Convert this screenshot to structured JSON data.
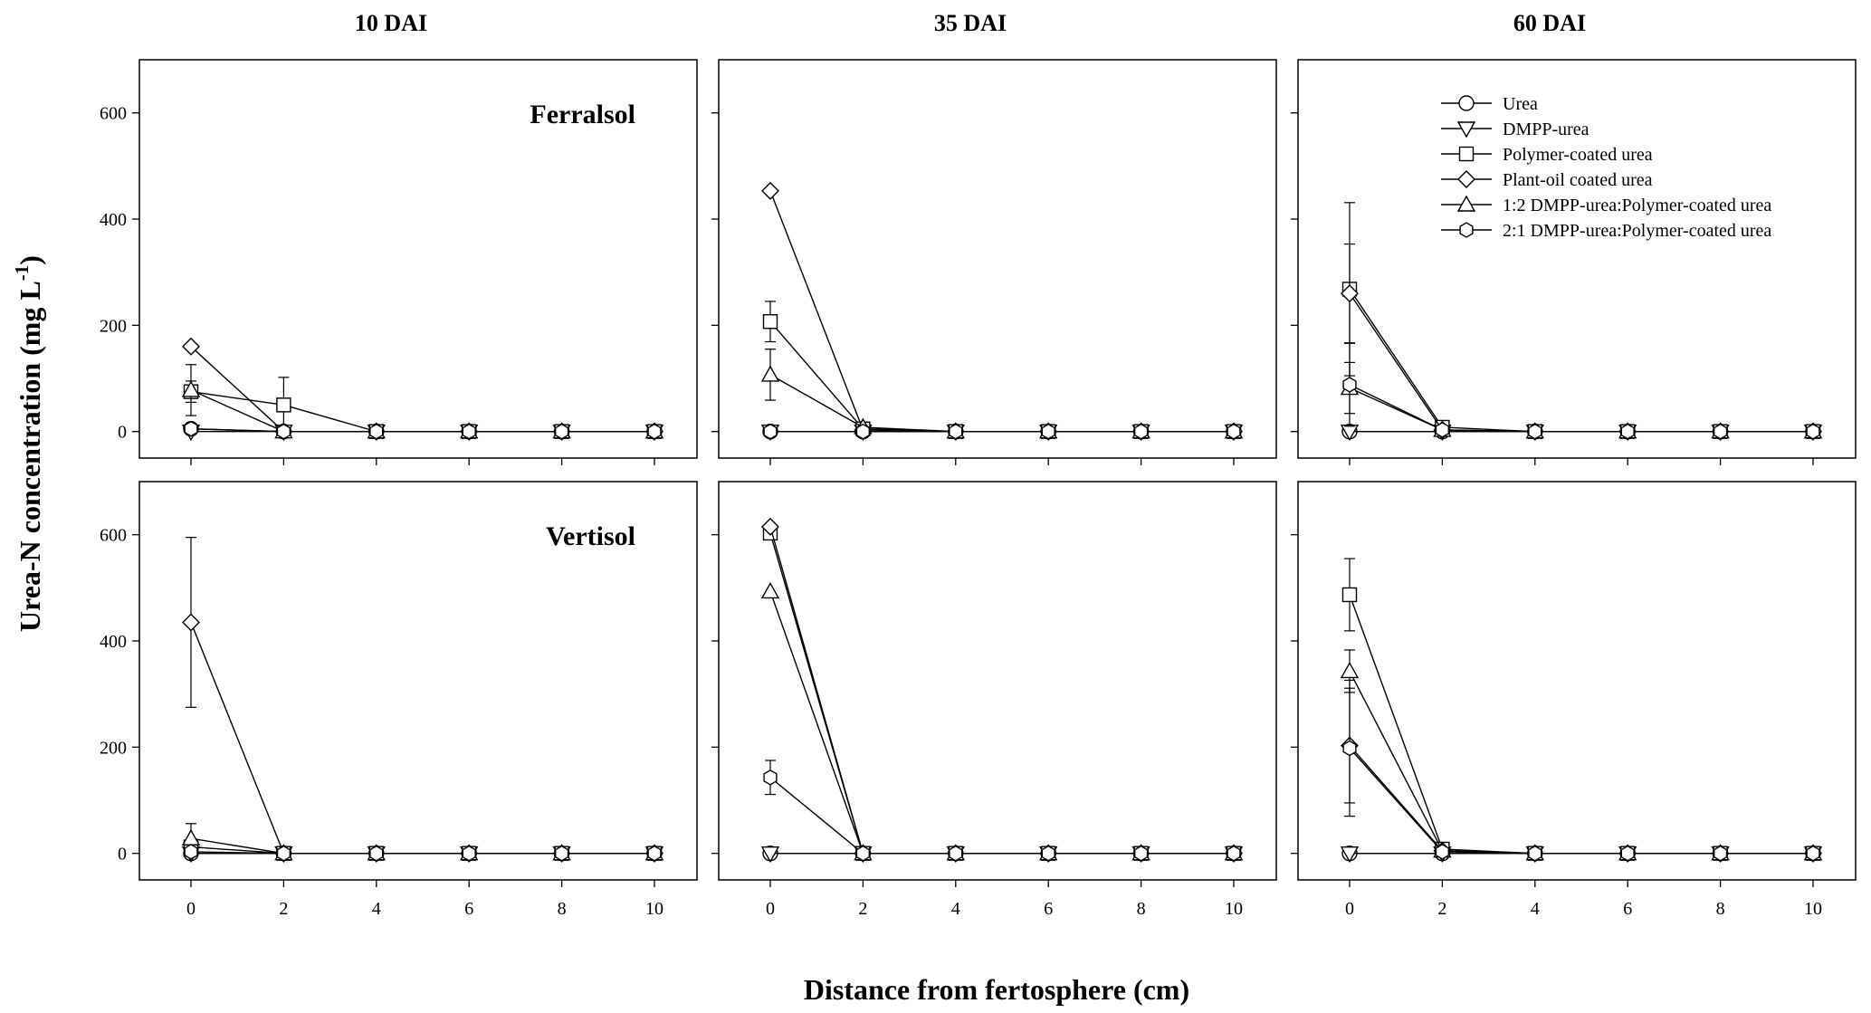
{
  "figure": {
    "ylabel_main": "Urea-N concentration (mg L",
    "ylabel_sup": "-1",
    "ylabel_close": ")",
    "xlabel": "Distance from fertosphere (cm)"
  },
  "chart_data": {
    "type": "line",
    "x": [
      0,
      2,
      4,
      6,
      8,
      10
    ],
    "ylim": [
      -50,
      700
    ],
    "yticks": [
      0,
      200,
      400,
      600
    ],
    "xticks": [
      0,
      2,
      4,
      6,
      8,
      10
    ],
    "grid": false,
    "legend_position": "top-right of 60 DAI Ferralsol panel",
    "columns": [
      "10 DAI",
      "35 DAI",
      "60 DAI"
    ],
    "rows": [
      "Ferralsol",
      "Vertisol"
    ],
    "series_names": [
      "Urea",
      "DMPP-urea",
      "Polymer-coated urea",
      "Plant-oil coated urea",
      "1:2 DMPP-urea:Polymer-coated urea",
      "2:1 DMPP-urea:Polymer-coated urea"
    ],
    "series_markers": [
      "circle",
      "triangle-down",
      "square",
      "diamond",
      "triangle-up",
      "hexagon"
    ],
    "panels": [
      {
        "row": "Ferralsol",
        "column": "10 DAI",
        "label": "Ferralsol",
        "series": [
          {
            "name": "Urea",
            "values": [
              5,
              0,
              0,
              0,
              0,
              0
            ],
            "err": [
              3,
              0,
              0,
              0,
              0,
              0
            ]
          },
          {
            "name": "DMPP-urea",
            "values": [
              0,
              0,
              0,
              0,
              0,
              0
            ],
            "err": [
              0,
              0,
              0,
              0,
              0,
              0
            ]
          },
          {
            "name": "Polymer-coated urea",
            "values": [
              75,
              50,
              0,
              0,
              0,
              0
            ],
            "err": [
              20,
              52,
              0,
              0,
              0,
              0
            ]
          },
          {
            "name": "Plant-oil coated urea",
            "values": [
              160,
              0,
              0,
              0,
              0,
              0
            ],
            "err": [
              0,
              0,
              0,
              0,
              0,
              0
            ]
          },
          {
            "name": "1:2 DMPP-urea:Polymer-coated urea",
            "values": [
              78,
              0,
              0,
              0,
              0,
              0
            ],
            "err": [
              48,
              0,
              0,
              0,
              0,
              0
            ]
          },
          {
            "name": "2:1 DMPP-urea:Polymer-coated urea",
            "values": [
              5,
              0,
              0,
              0,
              0,
              0
            ],
            "err": [
              3,
              0,
              0,
              0,
              0,
              0
            ]
          }
        ]
      },
      {
        "row": "Ferralsol",
        "column": "35 DAI",
        "label": "",
        "series": [
          {
            "name": "Urea",
            "values": [
              0,
              0,
              0,
              0,
              0,
              0
            ],
            "err": [
              0,
              0,
              0,
              0,
              0,
              0
            ]
          },
          {
            "name": "DMPP-urea",
            "values": [
              0,
              0,
              0,
              0,
              0,
              0
            ],
            "err": [
              0,
              0,
              0,
              0,
              0,
              0
            ]
          },
          {
            "name": "Polymer-coated urea",
            "values": [
              207,
              5,
              0,
              0,
              0,
              0
            ],
            "err": [
              38,
              0,
              0,
              0,
              0,
              0
            ]
          },
          {
            "name": "Plant-oil coated urea",
            "values": [
              453,
              3,
              0,
              0,
              0,
              0
            ],
            "err": [
              0,
              0,
              0,
              0,
              0,
              0
            ]
          },
          {
            "name": "1:2 DMPP-urea:Polymer-coated urea",
            "values": [
              107,
              8,
              0,
              0,
              0,
              0
            ],
            "err": [
              48,
              0,
              0,
              0,
              0,
              0
            ]
          },
          {
            "name": "2:1 DMPP-urea:Polymer-coated urea",
            "values": [
              0,
              0,
              0,
              0,
              0,
              0
            ],
            "err": [
              0,
              0,
              0,
              0,
              0,
              0
            ]
          }
        ]
      },
      {
        "row": "Ferralsol",
        "column": "60 DAI",
        "label": "",
        "series": [
          {
            "name": "Urea",
            "values": [
              0,
              0,
              0,
              0,
              0,
              0
            ],
            "err": [
              0,
              0,
              0,
              0,
              0,
              0
            ]
          },
          {
            "name": "DMPP-urea",
            "values": [
              0,
              0,
              0,
              0,
              0,
              0
            ],
            "err": [
              0,
              0,
              0,
              0,
              0,
              0
            ]
          },
          {
            "name": "Polymer-coated urea",
            "values": [
              268,
              8,
              0,
              0,
              0,
              0
            ],
            "err": [
              163,
              0,
              0,
              0,
              0,
              0
            ]
          },
          {
            "name": "Plant-oil coated urea",
            "values": [
              260,
              3,
              0,
              0,
              0,
              0
            ],
            "err": [
              93,
              0,
              0,
              0,
              0,
              0
            ]
          },
          {
            "name": "1:2 DMPP-urea:Polymer-coated urea",
            "values": [
              82,
              3,
              0,
              0,
              0,
              0
            ],
            "err": [
              48,
              0,
              0,
              0,
              0,
              0
            ]
          },
          {
            "name": "2:1 DMPP-urea:Polymer-coated urea",
            "values": [
              88,
              3,
              0,
              0,
              0,
              0
            ],
            "err": [
              78,
              0,
              0,
              0,
              0,
              0
            ]
          }
        ]
      },
      {
        "row": "Vertisol",
        "column": "10 DAI",
        "label": "Vertisol",
        "series": [
          {
            "name": "Urea",
            "values": [
              0,
              0,
              0,
              0,
              0,
              0
            ],
            "err": [
              0,
              0,
              0,
              0,
              0,
              0
            ]
          },
          {
            "name": "DMPP-urea",
            "values": [
              0,
              0,
              0,
              0,
              0,
              0
            ],
            "err": [
              0,
              0,
              0,
              0,
              0,
              0
            ]
          },
          {
            "name": "Polymer-coated urea",
            "values": [
              12,
              0,
              0,
              0,
              0,
              0
            ],
            "err": [
              0,
              0,
              0,
              0,
              0,
              0
            ]
          },
          {
            "name": "Plant-oil coated urea",
            "values": [
              435,
              0,
              0,
              0,
              0,
              0
            ],
            "err": [
              160,
              0,
              0,
              0,
              0,
              0
            ]
          },
          {
            "name": "1:2 DMPP-urea:Polymer-coated urea",
            "values": [
              28,
              0,
              0,
              0,
              0,
              0
            ],
            "err": [
              28,
              0,
              0,
              0,
              0,
              0
            ]
          },
          {
            "name": "2:1 DMPP-urea:Polymer-coated urea",
            "values": [
              3,
              0,
              0,
              0,
              0,
              0
            ],
            "err": [
              0,
              0,
              0,
              0,
              0,
              0
            ]
          }
        ]
      },
      {
        "row": "Vertisol",
        "column": "35 DAI",
        "label": "",
        "series": [
          {
            "name": "Urea",
            "values": [
              0,
              0,
              0,
              0,
              0,
              0
            ],
            "err": [
              0,
              0,
              0,
              0,
              0,
              0
            ]
          },
          {
            "name": "DMPP-urea",
            "values": [
              0,
              0,
              0,
              0,
              0,
              0
            ],
            "err": [
              0,
              0,
              0,
              0,
              0,
              0
            ]
          },
          {
            "name": "Polymer-coated urea",
            "values": [
              603,
              0,
              0,
              0,
              0,
              0
            ],
            "err": [
              0,
              0,
              0,
              0,
              0,
              0
            ]
          },
          {
            "name": "Plant-oil coated urea",
            "values": [
              615,
              0,
              0,
              0,
              0,
              0
            ],
            "err": [
              0,
              0,
              0,
              0,
              0,
              0
            ]
          },
          {
            "name": "1:2 DMPP-urea:Polymer-coated urea",
            "values": [
              493,
              0,
              0,
              0,
              0,
              0
            ],
            "err": [
              0,
              0,
              0,
              0,
              0,
              0
            ]
          },
          {
            "name": "2:1 DMPP-urea:Polymer-coated urea",
            "values": [
              143,
              0,
              0,
              0,
              0,
              0
            ],
            "err": [
              32,
              0,
              0,
              0,
              0,
              0
            ]
          }
        ]
      },
      {
        "row": "Vertisol",
        "column": "60 DAI",
        "label": "",
        "series": [
          {
            "name": "Urea",
            "values": [
              0,
              0,
              0,
              0,
              0,
              0
            ],
            "err": [
              0,
              0,
              0,
              0,
              0,
              0
            ]
          },
          {
            "name": "DMPP-urea",
            "values": [
              0,
              0,
              0,
              0,
              0,
              0
            ],
            "err": [
              0,
              0,
              0,
              0,
              0,
              0
            ]
          },
          {
            "name": "Polymer-coated urea",
            "values": [
              487,
              8,
              0,
              0,
              0,
              0
            ],
            "err": [
              68,
              0,
              0,
              0,
              0,
              0
            ]
          },
          {
            "name": "Plant-oil coated urea",
            "values": [
              203,
              5,
              0,
              0,
              0,
              0
            ],
            "err": [
              108,
              0,
              0,
              0,
              0,
              0
            ]
          },
          {
            "name": "1:2 DMPP-urea:Polymer-coated urea",
            "values": [
              343,
              5,
              0,
              0,
              0,
              0
            ],
            "err": [
              40,
              0,
              0,
              0,
              0,
              0
            ]
          },
          {
            "name": "2:1 DMPP-urea:Polymer-coated urea",
            "values": [
              198,
              3,
              0,
              0,
              0,
              0
            ],
            "err": [
              128,
              0,
              0,
              0,
              0,
              0
            ]
          }
        ]
      }
    ]
  }
}
